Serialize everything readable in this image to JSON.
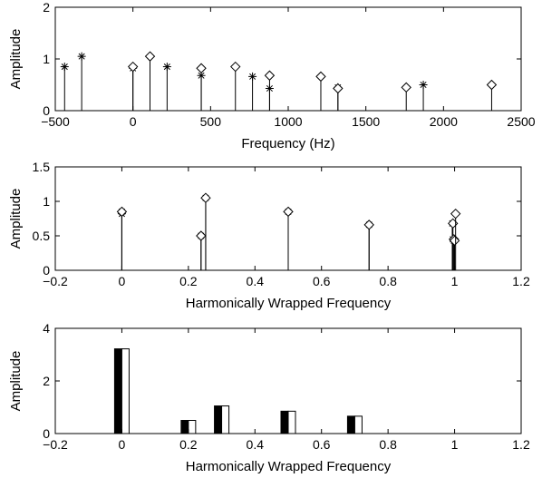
{
  "chart_data": [
    {
      "type": "stem",
      "xlabel": "Frequency (Hz)",
      "ylabel": "Amplitude",
      "xlim": [
        -500,
        2500
      ],
      "ylim": [
        0,
        2
      ],
      "xticks": [
        -500,
        0,
        500,
        1000,
        1500,
        2000,
        2500
      ],
      "xtick_labels": [
        "−500",
        "0",
        "500",
        "1000",
        "1500",
        "2000",
        "2500"
      ],
      "yticks": [
        0,
        1,
        2
      ],
      "ytick_labels": [
        "0",
        "1",
        "2"
      ],
      "series": [
        {
          "marker": "asterisk",
          "x": [
            -440,
            -330,
            0,
            220,
            440,
            770,
            880,
            1320,
            1870
          ],
          "y": [
            0.85,
            1.05,
            0.82,
            0.85,
            0.68,
            0.66,
            0.43,
            0.45,
            0.5
          ]
        },
        {
          "marker": "diamond",
          "x": [
            0,
            110,
            440,
            660,
            880,
            1210,
            1320,
            1760,
            2310
          ],
          "y": [
            0.85,
            1.05,
            0.82,
            0.85,
            0.68,
            0.66,
            0.43,
            0.45,
            0.5
          ]
        }
      ]
    },
    {
      "type": "stem",
      "xlabel": "Harmonically Wrapped Frequency",
      "ylabel": "Amplitude",
      "xlim": [
        -0.2,
        1.2
      ],
      "ylim": [
        0,
        1.5
      ],
      "xticks": [
        -0.2,
        0,
        0.2,
        0.4,
        0.6,
        0.8,
        1,
        1.2
      ],
      "xtick_labels": [
        "−0.2",
        "0",
        "0.2",
        "0.4",
        "0.6",
        "0.8",
        "1",
        "1.2"
      ],
      "yticks": [
        0,
        0.5,
        1,
        1.5
      ],
      "ytick_labels": [
        "0",
        "0.5",
        "1",
        "1.5"
      ],
      "series": [
        {
          "marker": "asterisk",
          "x": [
            0.0,
            0.0,
            0.238,
            0.252,
            0.5,
            0.743,
            0.993,
            0.995,
            0.998
          ],
          "y": [
            0.82,
            0.85,
            0.5,
            1.05,
            0.85,
            0.66,
            0.68,
            0.45,
            0.43
          ]
        },
        {
          "marker": "diamond",
          "x": [
            0.0,
            0.238,
            0.252,
            0.5,
            0.743,
            0.995,
            0.998,
            1.0,
            1.003
          ],
          "y": [
            0.85,
            0.5,
            1.05,
            0.85,
            0.66,
            0.68,
            0.45,
            0.43,
            0.82
          ]
        }
      ]
    },
    {
      "type": "bar",
      "xlabel": "Harmonically Wrapped Frequency",
      "ylabel": "Amplitude",
      "xlim": [
        -0.2,
        1.2
      ],
      "ylim": [
        0,
        4
      ],
      "xticks": [
        -0.2,
        0,
        0.2,
        0.4,
        0.6,
        0.8,
        1,
        1.2
      ],
      "xtick_labels": [
        "−0.2",
        "0",
        "0.2",
        "0.4",
        "0.6",
        "0.8",
        "1",
        "1.2"
      ],
      "yticks": [
        0,
        2,
        4
      ],
      "ytick_labels": [
        "0",
        "2",
        "4"
      ],
      "categories": [
        0,
        0.2,
        0.3,
        0.5,
        0.7
      ],
      "series": [
        {
          "fill": "#000000",
          "values": [
            3.22,
            0.5,
            1.05,
            0.85,
            0.66
          ]
        },
        {
          "fill": "#ffffff",
          "values": [
            3.22,
            0.5,
            1.05,
            0.85,
            0.66
          ]
        }
      ]
    }
  ]
}
